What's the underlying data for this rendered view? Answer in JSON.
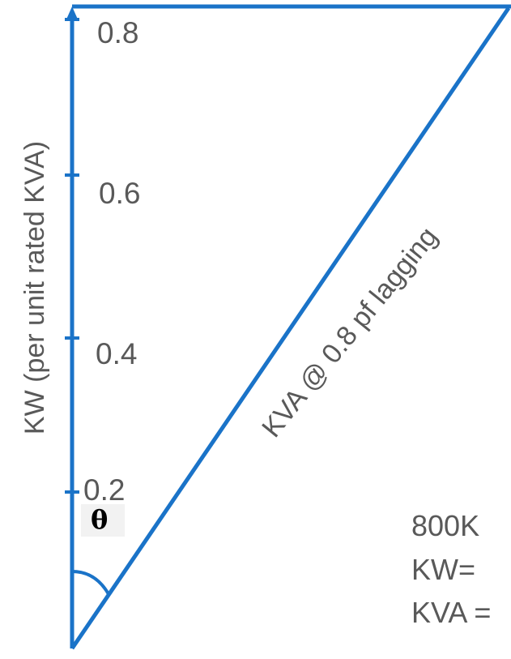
{
  "diagram": {
    "axis_label": "KW (per unit rated KVA)",
    "ticks": [
      "0.2",
      "0.4",
      "0.6",
      "0.8"
    ],
    "hypotenuse_label": "KVA @ 0.8 pf  lagging",
    "angle_label": "θ",
    "notes": [
      "800K",
      "KW=",
      "KVA ="
    ],
    "colors": {
      "line": "#1a73c8",
      "text": "#595959"
    }
  }
}
